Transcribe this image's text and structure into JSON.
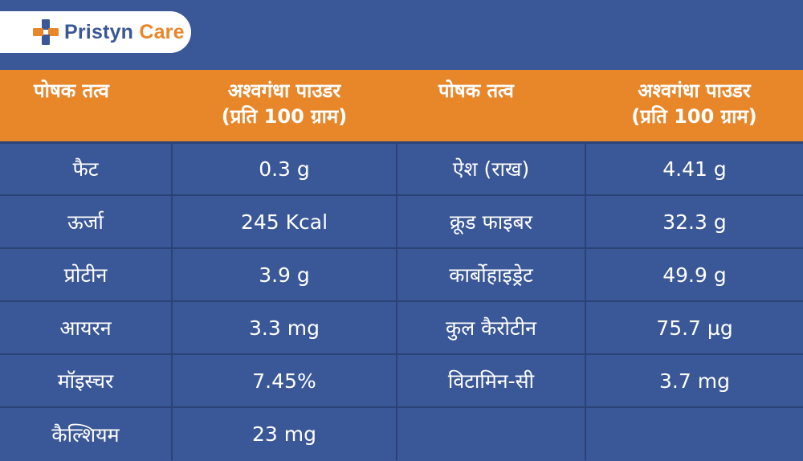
{
  "brand": {
    "name_part1": "Pristyn",
    "name_part2": "Care",
    "logo_icon": "medical-cross-icon",
    "colors": {
      "blue": "#3a5797",
      "orange": "#e8862a"
    }
  },
  "table": {
    "headers": [
      {
        "line1": "पोषक तत्व",
        "line2": ""
      },
      {
        "line1": "अश्वगंधा पाउडर",
        "line2": "(प्रति 100 ग्राम)"
      },
      {
        "line1": "पोषक तत्व",
        "line2": ""
      },
      {
        "line1": "अश्वगंधा पाउडर",
        "line2": "(प्रति 100 ग्राम)"
      }
    ],
    "rows": [
      [
        "फैट",
        "0.3 g",
        "ऐश (राख)",
        "4.41 g"
      ],
      [
        "ऊर्जा",
        "245 Kcal",
        "क्रूड फाइबर",
        "32.3 g"
      ],
      [
        "प्रोटीन",
        "3.9 g",
        "कार्बोहाइड्रेट",
        "49.9 g"
      ],
      [
        "आयरन",
        "3.3 mg",
        "कुल कैरोटीन",
        "75.7 µg"
      ],
      [
        "मॉइस्चर",
        "7.45%",
        "विटामिन-सी",
        "3.7 mg"
      ],
      [
        "कैल्शियम",
        "23 mg",
        "",
        ""
      ]
    ]
  }
}
